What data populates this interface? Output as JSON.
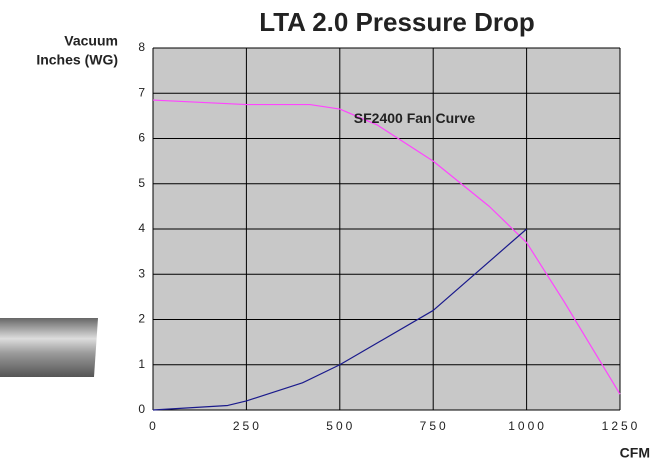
{
  "chart_data": {
    "type": "line",
    "title": "LTA 2.0 Pressure Drop",
    "ylabel": [
      "Vacuum",
      "Inches (WG)"
    ],
    "xlabel": "CFM",
    "xlim": [
      0,
      1250
    ],
    "xticks": [
      0,
      250,
      500,
      750,
      1000,
      1250
    ],
    "ylim": [
      0,
      8
    ],
    "yticks": [
      0,
      1,
      2,
      3,
      4,
      5,
      6,
      7,
      8
    ],
    "grid": true,
    "series": [
      {
        "name": "SF2400 Fan Curve",
        "color": "#ff44ff",
        "x": [
          0,
          250,
          420,
          500,
          600,
          750,
          900,
          1000,
          1100,
          1250
        ],
        "values": [
          6.85,
          6.75,
          6.75,
          6.65,
          6.3,
          5.5,
          4.5,
          3.7,
          2.4,
          0.35
        ]
      },
      {
        "color": "#1a1a8c",
        "x": [
          0,
          200,
          250,
          400,
          500,
          750,
          1000
        ],
        "values": [
          0,
          0.1,
          0.2,
          0.6,
          1.0,
          2.2,
          4.0
        ]
      }
    ]
  }
}
